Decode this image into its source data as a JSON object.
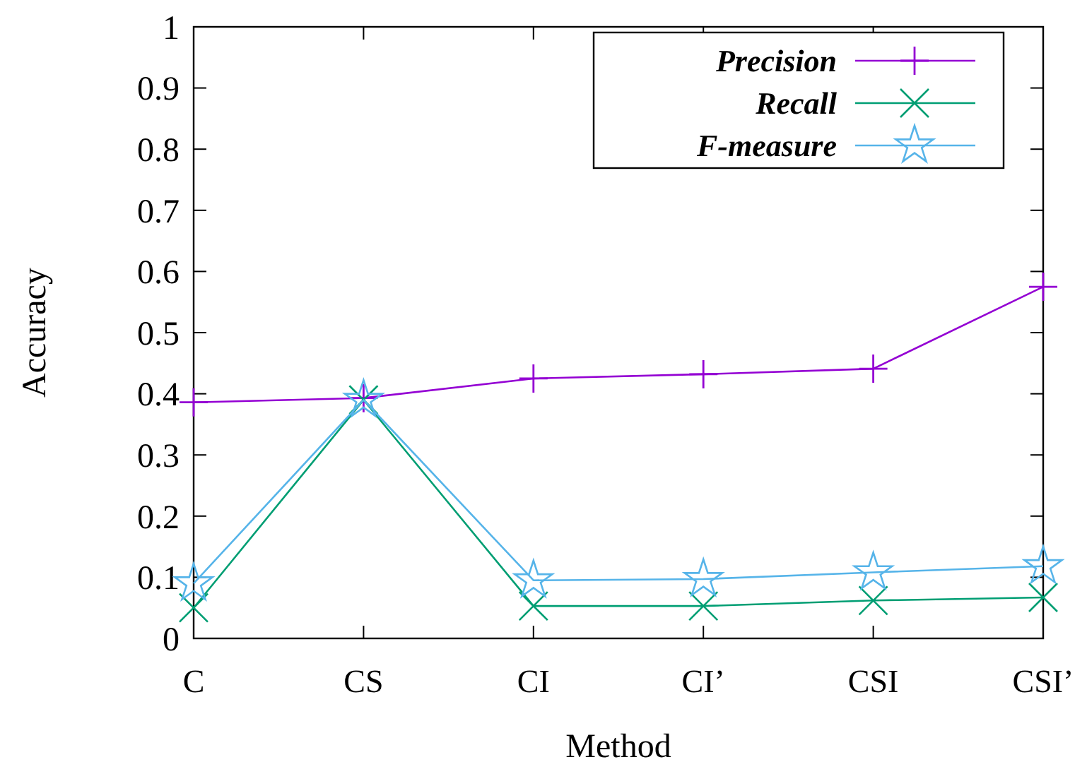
{
  "chart_data": {
    "type": "line",
    "xlabel": "Method",
    "ylabel": "Accuracy",
    "categories": [
      "C",
      "CS",
      "CI",
      "CI’",
      "CSI",
      "CSI’"
    ],
    "ylim": [
      0,
      1
    ],
    "yticks": [
      0,
      0.1,
      0.2,
      0.3,
      0.4,
      0.5,
      0.6,
      0.7,
      0.8,
      0.9,
      1
    ],
    "grid": false,
    "legend": "top right",
    "line_style": "solid",
    "series": [
      {
        "name": "Precision",
        "color": "#9400d3",
        "marker": "plus",
        "values": [
          0.386,
          0.393,
          0.425,
          0.432,
          0.441,
          0.575
        ]
      },
      {
        "name": "Recall",
        "color": "#009e73",
        "marker": "cross",
        "values": [
          0.05,
          0.39,
          0.053,
          0.053,
          0.062,
          0.067
        ]
      },
      {
        "name": "F-measure",
        "color": "#56b4e9",
        "marker": "star",
        "values": [
          0.09,
          0.39,
          0.095,
          0.097,
          0.108,
          0.118
        ]
      }
    ]
  }
}
